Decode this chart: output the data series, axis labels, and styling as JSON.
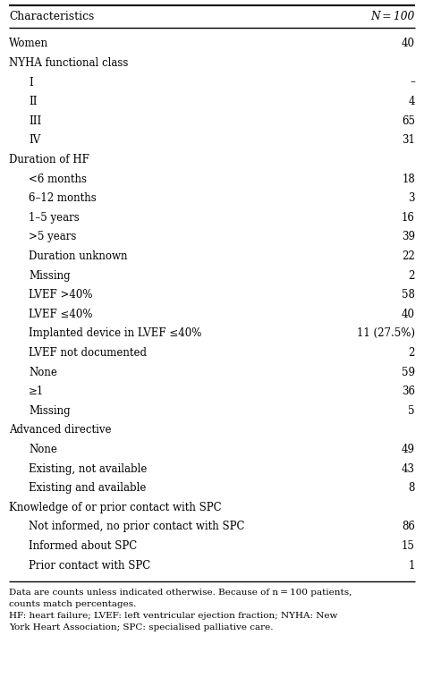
{
  "title_left": "Characteristics",
  "title_right": "N = 100",
  "rows": [
    {
      "label": "Women",
      "value": "40",
      "indent": 0
    },
    {
      "label": "NYHA functional class",
      "value": "",
      "indent": 0
    },
    {
      "label": "I",
      "value": "–",
      "indent": 1
    },
    {
      "label": "II",
      "value": "4",
      "indent": 1
    },
    {
      "label": "III",
      "value": "65",
      "indent": 1
    },
    {
      "label": "IV",
      "value": "31",
      "indent": 1
    },
    {
      "label": "Duration of HF",
      "value": "",
      "indent": 0
    },
    {
      "label": "<6 months",
      "value": "18",
      "indent": 1
    },
    {
      "label": "6–12 months",
      "value": "3",
      "indent": 1
    },
    {
      "label": "1–5 years",
      "value": "16",
      "indent": 1
    },
    {
      "label": ">5 years",
      "value": "39",
      "indent": 1
    },
    {
      "label": "Duration unknown",
      "value": "22",
      "indent": 1
    },
    {
      "label": "Missing",
      "value": "2",
      "indent": 1
    },
    {
      "label": "LVEF >40%",
      "value": "58",
      "indent": 1
    },
    {
      "label": "LVEF ≤40%",
      "value": "40",
      "indent": 1
    },
    {
      "label": "Implanted device in LVEF ≤40%",
      "value": "11 (27.5%)",
      "indent": 1
    },
    {
      "label": "LVEF not documented",
      "value": "2",
      "indent": 1
    },
    {
      "label": "None",
      "value": "59",
      "indent": 1
    },
    {
      "label": "≥1",
      "value": "36",
      "indent": 1
    },
    {
      "label": "Missing",
      "value": "5",
      "indent": 1
    },
    {
      "label": "Advanced directive",
      "value": "",
      "indent": 0
    },
    {
      "label": "None",
      "value": "49",
      "indent": 1
    },
    {
      "label": "Existing, not available",
      "value": "43",
      "indent": 1
    },
    {
      "label": "Existing and available",
      "value": "8",
      "indent": 1
    },
    {
      "label": "Knowledge of or prior contact with SPC",
      "value": "",
      "indent": 0
    },
    {
      "label": "Not informed, no prior contact with SPC",
      "value": "86",
      "indent": 1
    },
    {
      "label": "Informed about SPC",
      "value": "15",
      "indent": 1
    },
    {
      "label": "Prior contact with SPC",
      "value": "1",
      "indent": 1
    }
  ],
  "footnote_lines": [
    "Data are counts unless indicated otherwise. Because of n = 100 patients,",
    "counts match percentages.",
    "HF: heart failure; LVEF: left ventricular ejection fraction; NYHA: New",
    "York Heart Association; SPC: specialised palliative care."
  ],
  "bg_color": "#ffffff",
  "text_color": "#000000"
}
